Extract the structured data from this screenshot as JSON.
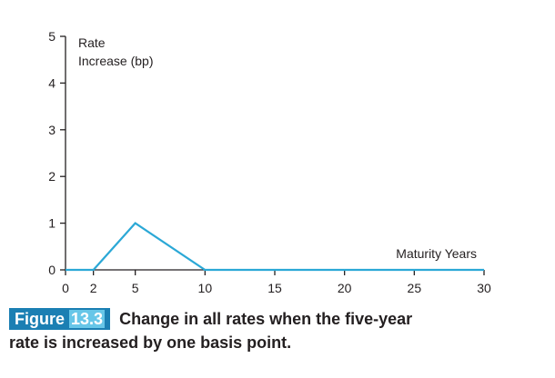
{
  "chart_data": {
    "type": "line",
    "title": "",
    "ylabel_line1": "Rate",
    "ylabel_line2": "Increase (bp)",
    "xlabel": "Maturity Years",
    "x_ticks": [
      0,
      2,
      5,
      10,
      15,
      20,
      25,
      30
    ],
    "y_ticks": [
      0,
      1,
      2,
      3,
      4,
      5
    ],
    "xlim": [
      0,
      30
    ],
    "ylim": [
      0,
      5
    ],
    "grid": false,
    "series": [
      {
        "x": [
          0,
          2,
          5,
          10,
          30
        ],
        "y": [
          0,
          0,
          1,
          0,
          0
        ],
        "color": "#2ba8d6"
      }
    ]
  },
  "caption": {
    "figure_word": "Figure",
    "figure_number": "13.3",
    "text_line1": "Change in all rates when the five-year",
    "text_line2": "rate is increased by one basis point."
  },
  "colors": {
    "axis": "#231f20",
    "badge_bg": "#1b7fb3",
    "badge_num_bg": "#67c6e8"
  }
}
